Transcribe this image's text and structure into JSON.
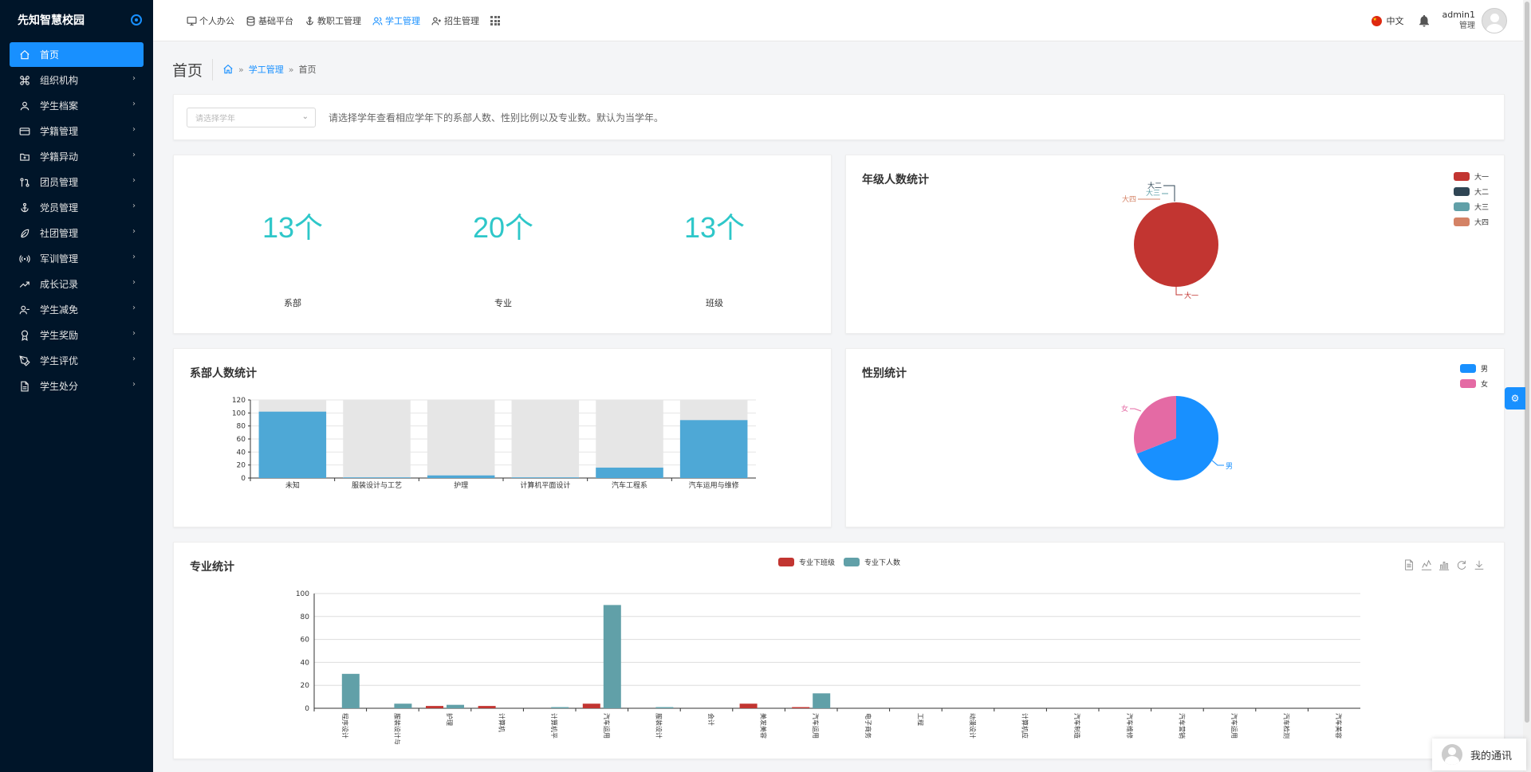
{
  "brand": {
    "name": "先知智慧校园"
  },
  "sidebar": {
    "items": [
      {
        "label": "首页",
        "icon": "home-icon",
        "active": true
      },
      {
        "label": "组织机构",
        "icon": "command-icon"
      },
      {
        "label": "学生档案",
        "icon": "user-icon"
      },
      {
        "label": "学籍管理",
        "icon": "card-icon"
      },
      {
        "label": "学籍异动",
        "icon": "folder-plus-icon"
      },
      {
        "label": "团员管理",
        "icon": "git-pull-icon"
      },
      {
        "label": "党员管理",
        "icon": "anchor-icon"
      },
      {
        "label": "社团管理",
        "icon": "feather-icon"
      },
      {
        "label": "军训管理",
        "icon": "radio-icon"
      },
      {
        "label": "成长记录",
        "icon": "trending-up-icon"
      },
      {
        "label": "学生减免",
        "icon": "user-minus-icon"
      },
      {
        "label": "学生奖励",
        "icon": "award-icon"
      },
      {
        "label": "学生评优",
        "icon": "pen-tool-icon"
      },
      {
        "label": "学生处分",
        "icon": "file-icon"
      }
    ]
  },
  "topnav": {
    "items": [
      {
        "label": "个人办公",
        "icon": "monitor-icon"
      },
      {
        "label": "基础平台",
        "icon": "database-icon"
      },
      {
        "label": "教职工管理",
        "icon": "anchor-icon"
      },
      {
        "label": "学工管理",
        "icon": "users-icon",
        "active": true
      },
      {
        "label": "招生管理",
        "icon": "user-plus-icon"
      }
    ]
  },
  "header": {
    "language": "中文",
    "username": "admin1",
    "role": "管理"
  },
  "page": {
    "title": "首页",
    "breadcrumb": [
      "学工管理",
      "首页"
    ]
  },
  "filter": {
    "placeholder": "请选择学年",
    "hint": "请选择学年查看相应学年下的系部人数、性别比例以及专业数。默认为当学年。"
  },
  "stats": [
    {
      "value": "13个",
      "label": "系部"
    },
    {
      "value": "20个",
      "label": "专业"
    },
    {
      "value": "13个",
      "label": "班级"
    }
  ],
  "colors": {
    "accent": "#1890ff",
    "sidebar_bg": "#001529",
    "stat_number": "#2ec7c9"
  },
  "grade_chart": {
    "title": "年级人数统计",
    "chart_data": {
      "type": "pie",
      "labels": [
        "大一",
        "大二",
        "大三",
        "大四"
      ],
      "values": [
        100,
        0,
        0,
        0
      ],
      "colors": [
        "#c23531",
        "#2f4554",
        "#61a0a8",
        "#d48265"
      ],
      "legend": "top-right"
    }
  },
  "dept_chart": {
    "title": "系部人数统计",
    "chart_data": {
      "type": "bar",
      "categories": [
        "未知",
        "服装设计与工艺",
        "护理",
        "计算机平面设计",
        "汽车工程系",
        "汽车运用与维修"
      ],
      "values": [
        102,
        1,
        4,
        1,
        16,
        89
      ],
      "ylim": [
        0,
        120
      ],
      "yticks": [
        0,
        20,
        40,
        60,
        80,
        100,
        120
      ],
      "color": "#4ea8d6",
      "background_bars": true
    }
  },
  "gender_chart": {
    "title": "性别统计",
    "chart_data": {
      "type": "pie",
      "labels": [
        "男",
        "女"
      ],
      "values": [
        69,
        31
      ],
      "colors": [
        "#1890ff",
        "#e46aa4"
      ],
      "legend": "top-right"
    }
  },
  "major_chart": {
    "title": "专业统计",
    "legend": [
      "专业下班级",
      "专业下人数"
    ],
    "chart_data": {
      "type": "bar",
      "categories": [
        "程序设计",
        "服装设计与",
        "护理",
        "计算机",
        "计算机平",
        "汽车运用",
        "服装设计",
        "会计",
        "美发美容",
        "汽车运用",
        "电子商务",
        "工程",
        "动漫设计",
        "计算机应",
        "汽车制造",
        "汽车维修",
        "汽车营销",
        "汽车运用",
        "汽车检测",
        "汽车美容"
      ],
      "series": [
        {
          "name": "专业下班级",
          "values": [
            0,
            0,
            2,
            2,
            0,
            4,
            0,
            0,
            4,
            1,
            0,
            0,
            0,
            0,
            0,
            0,
            0,
            0,
            0,
            0
          ],
          "color": "#c23531"
        },
        {
          "name": "专业下人数",
          "values": [
            30,
            4,
            3,
            0,
            1,
            90,
            1,
            0,
            0,
            13,
            0,
            0,
            0,
            0,
            0,
            0,
            0,
            0,
            0,
            0
          ],
          "color": "#61a0a8"
        }
      ],
      "ylim": [
        0,
        100
      ],
      "yticks": [
        0,
        20,
        40,
        60,
        80,
        100
      ],
      "legend": "top-center"
    },
    "toolbox": [
      "data-view-icon",
      "line-icon",
      "bar-icon",
      "restore-icon",
      "download-icon"
    ]
  },
  "chat": {
    "label": "我的通讯"
  }
}
